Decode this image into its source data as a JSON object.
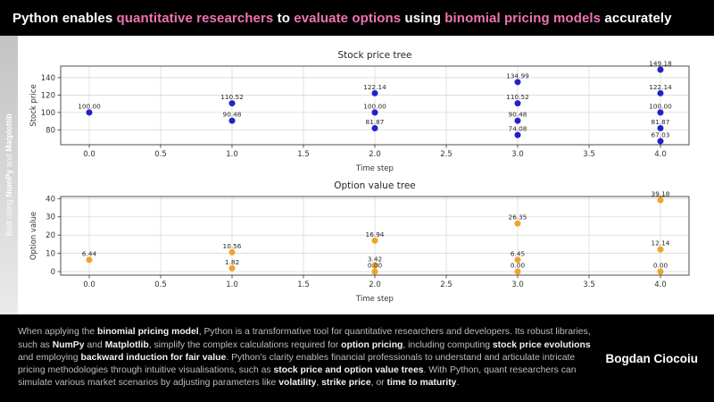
{
  "header": {
    "segments": [
      {
        "text": "Python enables ",
        "highlight": false
      },
      {
        "text": "quantitative researchers",
        "highlight": true
      },
      {
        "text": " to ",
        "highlight": false
      },
      {
        "text": "evaluate options",
        "highlight": true
      },
      {
        "text": " using ",
        "highlight": false
      },
      {
        "text": "binomial pricing models",
        "highlight": true
      },
      {
        "text": " accurately",
        "highlight": false
      }
    ]
  },
  "sidebar": {
    "segments": [
      {
        "text": "Built using ",
        "bold": false
      },
      {
        "text": "NumPy",
        "bold": true
      },
      {
        "text": " and ",
        "bold": false
      },
      {
        "text": "Matplotlib",
        "bold": true
      }
    ]
  },
  "colors": {
    "accent_pink": "#ef72b6",
    "stock_marker_blue": "#2121cc",
    "option_marker_orange": "#f2a229",
    "grid_gray": "#d9d9d9",
    "spine_gray": "#4d4d4d"
  },
  "chart_data": [
    {
      "type": "scatter",
      "title": "Stock price tree",
      "xlabel": "Time step",
      "ylabel": "Stock price",
      "xlim": [
        -0.2,
        4.2
      ],
      "ylim": [
        62.9,
        153.3
      ],
      "grid": true,
      "marker_color": "#2121cc",
      "xticks": [
        {
          "v": 0.0,
          "label": "0.0"
        },
        {
          "v": 0.5,
          "label": "0.5"
        },
        {
          "v": 1.0,
          "label": "1.0"
        },
        {
          "v": 1.5,
          "label": "1.5"
        },
        {
          "v": 2.0,
          "label": "2.0"
        },
        {
          "v": 2.5,
          "label": "2.5"
        },
        {
          "v": 3.0,
          "label": "3.0"
        },
        {
          "v": 3.5,
          "label": "3.5"
        },
        {
          "v": 4.0,
          "label": "4.0"
        }
      ],
      "yticks": [
        {
          "v": 80,
          "label": "80"
        },
        {
          "v": 100,
          "label": "100"
        },
        {
          "v": 120,
          "label": "120"
        },
        {
          "v": 140,
          "label": "140"
        }
      ],
      "points": [
        {
          "x": 0,
          "y": 100.0,
          "label": "100.00"
        },
        {
          "x": 1,
          "y": 110.52,
          "label": "110.52"
        },
        {
          "x": 1,
          "y": 90.48,
          "label": "90.48"
        },
        {
          "x": 2,
          "y": 122.14,
          "label": "122.14"
        },
        {
          "x": 2,
          "y": 100.0,
          "label": "100.00"
        },
        {
          "x": 2,
          "y": 81.87,
          "label": "81.87"
        },
        {
          "x": 3,
          "y": 134.99,
          "label": "134.99"
        },
        {
          "x": 3,
          "y": 110.52,
          "label": "110.52"
        },
        {
          "x": 3,
          "y": 90.48,
          "label": "90.48"
        },
        {
          "x": 3,
          "y": 74.08,
          "label": "74.08"
        },
        {
          "x": 4,
          "y": 149.18,
          "label": "149.18"
        },
        {
          "x": 4,
          "y": 122.14,
          "label": "122.14"
        },
        {
          "x": 4,
          "y": 100.0,
          "label": "100.00"
        },
        {
          "x": 4,
          "y": 81.87,
          "label": "81.87"
        },
        {
          "x": 4,
          "y": 67.03,
          "label": "67.03"
        }
      ]
    },
    {
      "type": "scatter",
      "title": "Option value tree",
      "xlabel": "Time step",
      "ylabel": "Option value",
      "xlim": [
        -0.2,
        4.2
      ],
      "ylim": [
        -1.96,
        41.14
      ],
      "grid": true,
      "marker_color": "#f2a229",
      "xticks": [
        {
          "v": 0.0,
          "label": "0.0"
        },
        {
          "v": 0.5,
          "label": "0.5"
        },
        {
          "v": 1.0,
          "label": "1.0"
        },
        {
          "v": 1.5,
          "label": "1.5"
        },
        {
          "v": 2.0,
          "label": "2.0"
        },
        {
          "v": 2.5,
          "label": "2.5"
        },
        {
          "v": 3.0,
          "label": "3.0"
        },
        {
          "v": 3.5,
          "label": "3.5"
        },
        {
          "v": 4.0,
          "label": "4.0"
        }
      ],
      "yticks": [
        {
          "v": 0,
          "label": "0"
        },
        {
          "v": 10,
          "label": "10"
        },
        {
          "v": 20,
          "label": "20"
        },
        {
          "v": 30,
          "label": "30"
        },
        {
          "v": 40,
          "label": "40"
        }
      ],
      "points": [
        {
          "x": 0,
          "y": 6.44,
          "label": "6.44"
        },
        {
          "x": 1,
          "y": 10.56,
          "label": "10.56"
        },
        {
          "x": 1,
          "y": 1.82,
          "label": "1.82"
        },
        {
          "x": 2,
          "y": 16.94,
          "label": "16.94"
        },
        {
          "x": 2,
          "y": 3.42,
          "label": "3.42"
        },
        {
          "x": 2,
          "y": 0.0,
          "label": "0.00"
        },
        {
          "x": 3,
          "y": 26.35,
          "label": "26.35"
        },
        {
          "x": 3,
          "y": 6.45,
          "label": "6.45"
        },
        {
          "x": 3,
          "y": 0.0,
          "label": "0.00"
        },
        {
          "x": 4,
          "y": 39.18,
          "label": "39.18"
        },
        {
          "x": 4,
          "y": 12.14,
          "label": "12.14"
        },
        {
          "x": 4,
          "y": 0.0,
          "label": "0.00"
        }
      ]
    }
  ],
  "footer": {
    "segments": [
      {
        "text": "When applying the ",
        "bold": false
      },
      {
        "text": "binomial pricing model",
        "bold": true
      },
      {
        "text": ", Python is a transformative tool for quantitative researchers and developers. Its robust libraries, such as ",
        "bold": false
      },
      {
        "text": "NumPy",
        "bold": true
      },
      {
        "text": " and ",
        "bold": false
      },
      {
        "text": "Matplotlib",
        "bold": true
      },
      {
        "text": ", simplify the complex calculations required for ",
        "bold": false
      },
      {
        "text": "option pricing",
        "bold": true
      },
      {
        "text": ", including computing ",
        "bold": false
      },
      {
        "text": "stock price evolutions",
        "bold": true
      },
      {
        "text": " and employing ",
        "bold": false
      },
      {
        "text": "backward induction for fair value",
        "bold": true
      },
      {
        "text": ". Python’s clarity enables financial professionals to understand and articulate intricate pricing methodologies through intuitive visualisations, such as ",
        "bold": false
      },
      {
        "text": "stock price and option value trees",
        "bold": true
      },
      {
        "text": ". With Python, quant researchers can simulate various market scenarios by adjusting parameters like ",
        "bold": false
      },
      {
        "text": "volatility",
        "bold": true
      },
      {
        "text": ", ",
        "bold": false
      },
      {
        "text": "strike price",
        "bold": true
      },
      {
        "text": ", or ",
        "bold": false
      },
      {
        "text": "time to maturity",
        "bold": true
      },
      {
        "text": ".",
        "bold": false
      }
    ],
    "author": "Bogdan Ciocoiu"
  }
}
